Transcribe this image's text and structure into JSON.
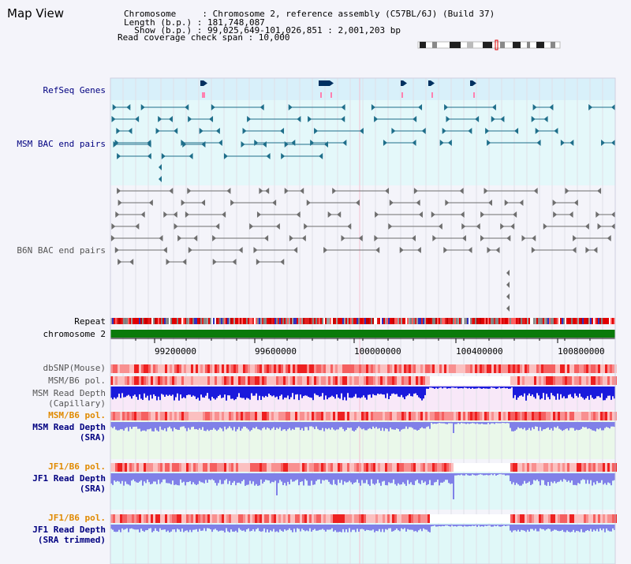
{
  "header": {
    "title": "Map View",
    "info_lines": [
      "Chromosome     : Chromosome 2, reference assembly (C57BL/6J) (Build 37)",
      "Length (b.p.) : 181,748,087",
      "  Show (b.p.) : 99,025,649-101,026,851 : 2,001,203 bp",
      "Read coverage check span : 10,000"
    ]
  },
  "tracks": {
    "refseq": "RefSeq Genes",
    "msm_bac": "MSM BAC end pairs",
    "b6n_bac": "B6N BAC end pairs",
    "repeat": "Repeat",
    "chromosome": "chromosome 2",
    "dbsnp": "dbSNP(Mouse)",
    "msm_pol": "MSM/B6 pol.",
    "msm_depth_cap": [
      "MSM Read Depth",
      "(Capillary)"
    ],
    "msm_pol2": "MSM/B6 pol.",
    "msm_depth_sra": [
      "MSM Read Depth",
      "(SRA)"
    ],
    "jf1_pol": "JF1/B6 pol.",
    "jf1_depth_sra": [
      "JF1 Read Depth",
      "(SRA)"
    ],
    "jf1_pol2": "JF1/B6 pol.",
    "jf1_depth_trim": [
      "JF1 Read Depth",
      "(SRA trimmed)"
    ]
  },
  "axis": {
    "ticks": [
      "99200000",
      "99600000",
      "100000000",
      "100400000",
      "100800000"
    ]
  },
  "colors": {
    "navy_label": "#000080",
    "orange_label": "#e08a00",
    "black_label": "#000000",
    "gray_label": "#555555",
    "teal": "#1e6e8a",
    "gray_feature": "#6e6e6e",
    "chrom_green": "#0a7a0a",
    "depth_blue": "#1a1adc",
    "depth_lavender": "#8080e8"
  }
}
